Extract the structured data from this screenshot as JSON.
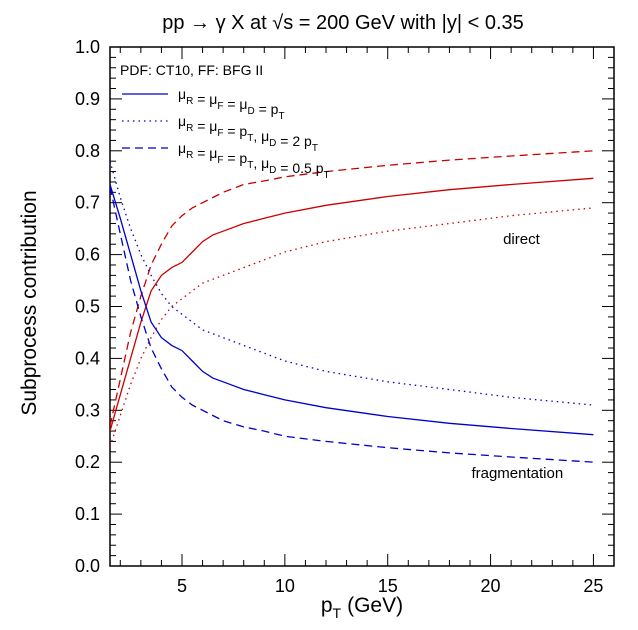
{
  "chart_data": {
    "type": "line",
    "title": "pp → γ X at √s = 200 GeV with |y| < 0.35",
    "xlabel": "p",
    "xlabel_sub": "T",
    "xlabel_unit": "(GeV)",
    "ylabel": "Subprocess contribution",
    "xlim": [
      1.5,
      26
    ],
    "ylim": [
      0.0,
      1.0
    ],
    "x_ticks": [
      5,
      10,
      15,
      20,
      25
    ],
    "x_tick_labels": [
      "5",
      "10",
      "15",
      "20",
      "25"
    ],
    "y_ticks": [
      0.0,
      0.1,
      0.2,
      0.3,
      0.4,
      0.5,
      0.6,
      0.7,
      0.8,
      0.9,
      1.0
    ],
    "y_tick_labels": [
      "0.0",
      "0.1",
      "0.2",
      "0.3",
      "0.4",
      "0.5",
      "0.6",
      "0.7",
      "0.8",
      "0.9",
      "1.0"
    ],
    "grid": false,
    "legend_position": "top-left",
    "legend_header": "PDF: CT10, FF: BFG II",
    "legend": [
      {
        "style": "solid",
        "parts": [
          [
            "μ",
            "R"
          ],
          [
            " = μ",
            "F"
          ],
          [
            " = μ",
            "D"
          ],
          [
            " = p",
            "T"
          ]
        ]
      },
      {
        "style": "dotted",
        "parts": [
          [
            "μ",
            "R"
          ],
          [
            " = μ",
            "F"
          ],
          [
            " = p",
            "T"
          ],
          [
            ", μ",
            "D"
          ],
          [
            " = 2 p",
            "T"
          ]
        ]
      },
      {
        "style": "dashed",
        "parts": [
          [
            "μ",
            "R"
          ],
          [
            " = μ",
            "F"
          ],
          [
            " = p",
            "T"
          ],
          [
            ", μ",
            "D"
          ],
          [
            " = 0.5 p",
            "T"
          ]
        ]
      }
    ],
    "annotations": [
      {
        "text": "direct",
        "x": 21.5,
        "y": 0.62
      },
      {
        "text": "fragmentation",
        "x": 21.3,
        "y": 0.17
      }
    ],
    "colors": {
      "direct": "#cc0000",
      "fragmentation": "#0000cc"
    },
    "series": [
      {
        "group": "direct",
        "style": "solid",
        "x": [
          1.5,
          2,
          2.5,
          3,
          3.5,
          4,
          4.5,
          5,
          5.5,
          6,
          6.5,
          7,
          8,
          9,
          10,
          12,
          15,
          18,
          21,
          25
        ],
        "y": [
          0.26,
          0.33,
          0.4,
          0.47,
          0.53,
          0.56,
          0.575,
          0.585,
          0.605,
          0.625,
          0.638,
          0.645,
          0.66,
          0.67,
          0.68,
          0.695,
          0.712,
          0.725,
          0.735,
          0.747
        ]
      },
      {
        "group": "direct",
        "style": "dotted",
        "x": [
          1.5,
          2,
          2.5,
          3,
          3.5,
          4,
          4.5,
          5,
          5.5,
          6,
          7,
          8,
          9,
          10,
          12,
          15,
          18,
          21,
          25
        ],
        "y": [
          0.23,
          0.29,
          0.35,
          0.4,
          0.44,
          0.475,
          0.5,
          0.515,
          0.53,
          0.545,
          0.56,
          0.575,
          0.59,
          0.605,
          0.625,
          0.645,
          0.66,
          0.675,
          0.69
        ]
      },
      {
        "group": "direct",
        "style": "dashed",
        "x": [
          1.5,
          2,
          2.5,
          3,
          3.5,
          4,
          4.5,
          5,
          5.5,
          6,
          7,
          8,
          9,
          10,
          12,
          15,
          18,
          21,
          25
        ],
        "y": [
          0.27,
          0.36,
          0.45,
          0.52,
          0.58,
          0.62,
          0.655,
          0.675,
          0.69,
          0.7,
          0.72,
          0.735,
          0.742,
          0.75,
          0.76,
          0.772,
          0.782,
          0.79,
          0.8
        ]
      },
      {
        "group": "fragmentation",
        "style": "solid",
        "x": [
          1.5,
          2,
          2.5,
          3,
          3.5,
          4,
          4.5,
          5,
          5.5,
          6,
          6.5,
          7,
          8,
          9,
          10,
          12,
          15,
          18,
          21,
          25
        ],
        "y": [
          0.735,
          0.67,
          0.6,
          0.53,
          0.47,
          0.44,
          0.425,
          0.415,
          0.395,
          0.375,
          0.362,
          0.355,
          0.34,
          0.33,
          0.32,
          0.305,
          0.288,
          0.275,
          0.265,
          0.253
        ]
      },
      {
        "group": "fragmentation",
        "style": "dotted",
        "x": [
          1.5,
          2,
          2.5,
          3,
          3.5,
          4,
          4.5,
          5,
          5.5,
          6,
          7,
          8,
          9,
          10,
          12,
          15,
          18,
          21,
          25
        ],
        "y": [
          0.78,
          0.71,
          0.65,
          0.6,
          0.56,
          0.525,
          0.5,
          0.485,
          0.47,
          0.455,
          0.44,
          0.425,
          0.41,
          0.395,
          0.375,
          0.355,
          0.34,
          0.325,
          0.31
        ]
      },
      {
        "group": "fragmentation",
        "style": "dashed",
        "x": [
          1.5,
          2,
          2.5,
          3,
          3.5,
          4,
          4.5,
          5,
          5.5,
          6,
          7,
          8,
          9,
          10,
          12,
          15,
          18,
          21,
          25
        ],
        "y": [
          0.73,
          0.64,
          0.55,
          0.48,
          0.42,
          0.38,
          0.345,
          0.325,
          0.31,
          0.3,
          0.28,
          0.268,
          0.26,
          0.25,
          0.24,
          0.228,
          0.218,
          0.21,
          0.2
        ]
      }
    ]
  }
}
